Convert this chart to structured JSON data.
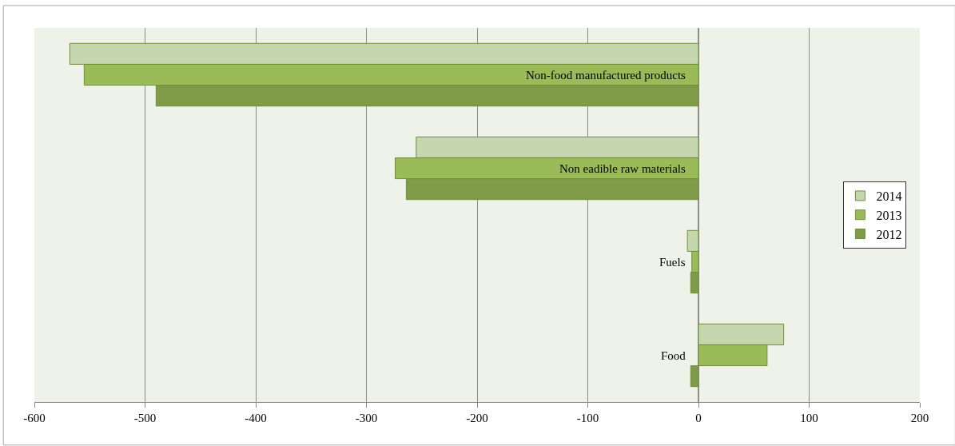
{
  "chart_data": {
    "type": "bar",
    "orientation": "horizontal",
    "categories": [
      "Non-food manufactured products",
      "Non eadible raw materials",
      "Fuels",
      "Food"
    ],
    "series": [
      {
        "name": "2014",
        "color": "#c6d6ae",
        "values": [
          -568,
          -255,
          -10,
          77
        ]
      },
      {
        "name": "2013",
        "color": "#9bbb59",
        "values": [
          -555,
          -274,
          -6,
          62
        ]
      },
      {
        "name": "2012",
        "color": "#7f9a48",
        "values": [
          -490,
          -264,
          -7,
          -7
        ]
      }
    ],
    "xlim": [
      -600,
      200
    ],
    "xticks": [
      -600,
      -500,
      -400,
      -300,
      -200,
      -100,
      0,
      100,
      200
    ],
    "grid": "x",
    "legend": "right"
  }
}
